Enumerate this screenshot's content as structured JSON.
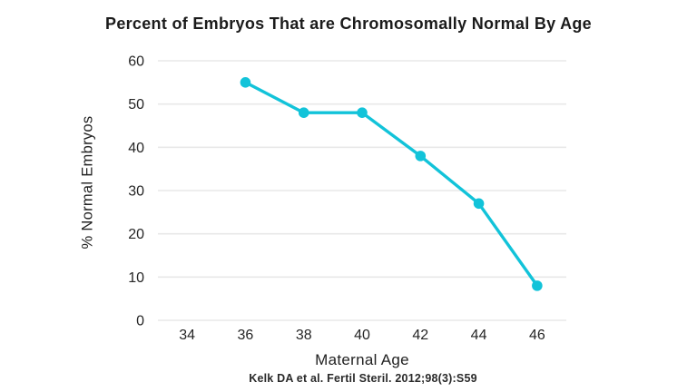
{
  "chart_data": {
    "type": "line",
    "title": "Percent of Embryos That are Chromosomally Normal By Age",
    "xlabel": "Maternal Age",
    "ylabel": "% Normal Embryos",
    "annotation": "Kelk DA et al. Fertil Steril. 2012;98(3):S59",
    "x": [
      36,
      38,
      40,
      42,
      44,
      46
    ],
    "values": [
      55,
      48,
      48,
      38,
      27,
      8
    ],
    "xticks": [
      34,
      36,
      38,
      40,
      42,
      44,
      46
    ],
    "yticks": [
      0,
      10,
      20,
      30,
      40,
      50,
      60
    ],
    "xlim": [
      33,
      47
    ],
    "ylim": [
      0,
      60
    ],
    "grid": true,
    "legend": "none",
    "line_color": "#12c3d9",
    "marker": "circle",
    "gridline_color": "#e8e8e8",
    "text_color": "#262626"
  }
}
